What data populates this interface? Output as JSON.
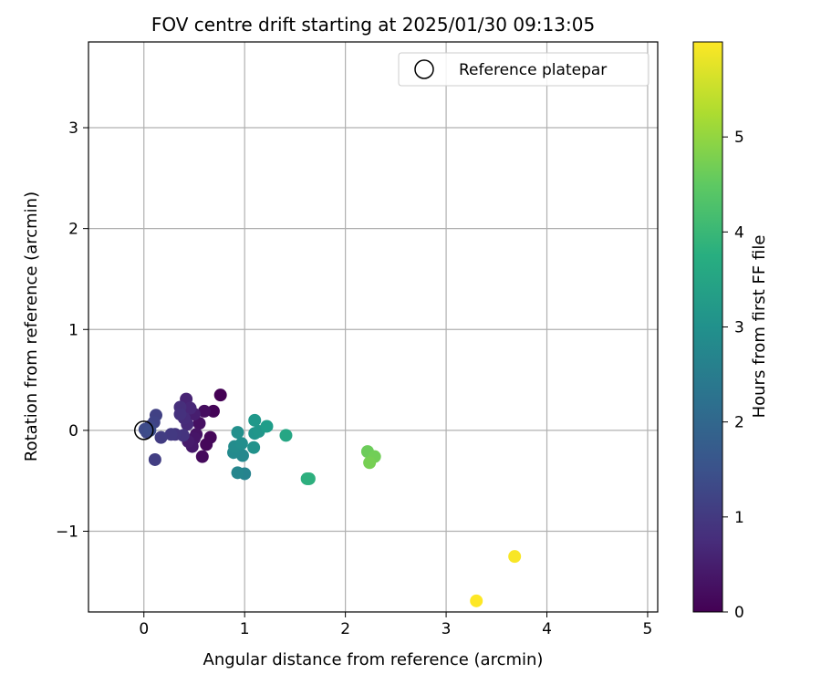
{
  "chart_data": {
    "type": "scatter",
    "title": "FOV centre drift starting at 2025/01/30 09:13:05",
    "xlabel": "Angular distance from reference (arcmin)",
    "ylabel": "Rotation from reference (arcmin)",
    "xlim": [
      -0.55,
      5.1
    ],
    "ylim": [
      -1.8,
      3.85
    ],
    "xticks": [
      0,
      1,
      2,
      3,
      4,
      5
    ],
    "yticks": [
      -1,
      0,
      1,
      2,
      3
    ],
    "grid": true,
    "legend": {
      "placement": "top-right",
      "entries": [
        {
          "label": "Reference platepar",
          "marker": "open-circle"
        }
      ]
    },
    "reference_point": {
      "x": 0,
      "y": 0
    },
    "colorbar": {
      "label": "Hours from first FF file",
      "colormap": "viridis",
      "min": 0,
      "max": 6,
      "ticks": [
        0,
        1,
        2,
        3,
        4,
        5
      ]
    },
    "points": [
      {
        "x": 0.76,
        "y": 0.35,
        "t": 0.0
      },
      {
        "x": 0.69,
        "y": 0.19,
        "t": 0.05
      },
      {
        "x": 0.66,
        "y": -0.07,
        "t": 0.1
      },
      {
        "x": 0.62,
        "y": -0.14,
        "t": 0.12
      },
      {
        "x": 0.58,
        "y": -0.26,
        "t": 0.15
      },
      {
        "x": 0.6,
        "y": 0.19,
        "t": 0.2
      },
      {
        "x": 0.55,
        "y": 0.07,
        "t": 0.25
      },
      {
        "x": 0.52,
        "y": -0.04,
        "t": 0.3
      },
      {
        "x": 0.5,
        "y": -0.08,
        "t": 0.35
      },
      {
        "x": 0.48,
        "y": -0.16,
        "t": 0.4
      },
      {
        "x": 0.44,
        "y": -0.11,
        "t": 0.45
      },
      {
        "x": 0.5,
        "y": 0.16,
        "t": 0.5
      },
      {
        "x": 0.42,
        "y": 0.31,
        "t": 0.6
      },
      {
        "x": 0.46,
        "y": 0.22,
        "t": 0.65
      },
      {
        "x": 0.43,
        "y": 0.06,
        "t": 0.7
      },
      {
        "x": 0.4,
        "y": 0.12,
        "t": 0.75
      },
      {
        "x": 0.36,
        "y": 0.23,
        "t": 0.8
      },
      {
        "x": 0.36,
        "y": 0.16,
        "t": 0.85
      },
      {
        "x": 0.39,
        "y": -0.05,
        "t": 0.9
      },
      {
        "x": 0.31,
        "y": -0.04,
        "t": 0.95
      },
      {
        "x": 0.27,
        "y": -0.04,
        "t": 1.0
      },
      {
        "x": 0.17,
        "y": -0.07,
        "t": 1.05
      },
      {
        "x": 0.11,
        "y": -0.29,
        "t": 1.1
      },
      {
        "x": 0.12,
        "y": 0.15,
        "t": 1.15
      },
      {
        "x": 0.1,
        "y": 0.08,
        "t": 1.2
      },
      {
        "x": 0.06,
        "y": 0.04,
        "t": 1.25
      },
      {
        "x": 0.03,
        "y": -0.02,
        "t": 1.3
      },
      {
        "x": 0.01,
        "y": 0.01,
        "t": 1.35
      },
      {
        "x": 0.06,
        "y": 0.0,
        "t": 1.4
      },
      {
        "x": 1.0,
        "y": -0.43,
        "t": 2.7
      },
      {
        "x": 0.93,
        "y": -0.42,
        "t": 2.75
      },
      {
        "x": 0.98,
        "y": -0.25,
        "t": 2.8
      },
      {
        "x": 0.89,
        "y": -0.22,
        "t": 2.85
      },
      {
        "x": 0.9,
        "y": -0.16,
        "t": 2.9
      },
      {
        "x": 0.97,
        "y": -0.13,
        "t": 2.95
      },
      {
        "x": 0.93,
        "y": -0.02,
        "t": 3.0
      },
      {
        "x": 1.09,
        "y": -0.17,
        "t": 3.05
      },
      {
        "x": 1.1,
        "y": -0.03,
        "t": 3.1
      },
      {
        "x": 1.14,
        "y": -0.01,
        "t": 3.15
      },
      {
        "x": 1.1,
        "y": 0.1,
        "t": 3.2
      },
      {
        "x": 1.22,
        "y": 0.04,
        "t": 3.3
      },
      {
        "x": 1.41,
        "y": -0.05,
        "t": 3.55
      },
      {
        "x": 1.62,
        "y": -0.48,
        "t": 3.75
      },
      {
        "x": 1.64,
        "y": -0.48,
        "t": 3.8
      },
      {
        "x": 2.22,
        "y": -0.21,
        "t": 4.65
      },
      {
        "x": 2.29,
        "y": -0.26,
        "t": 4.7
      },
      {
        "x": 2.24,
        "y": -0.32,
        "t": 4.75
      },
      {
        "x": 3.68,
        "y": -1.25,
        "t": 5.95
      },
      {
        "x": 3.3,
        "y": -1.69,
        "t": 6.0
      }
    ]
  }
}
